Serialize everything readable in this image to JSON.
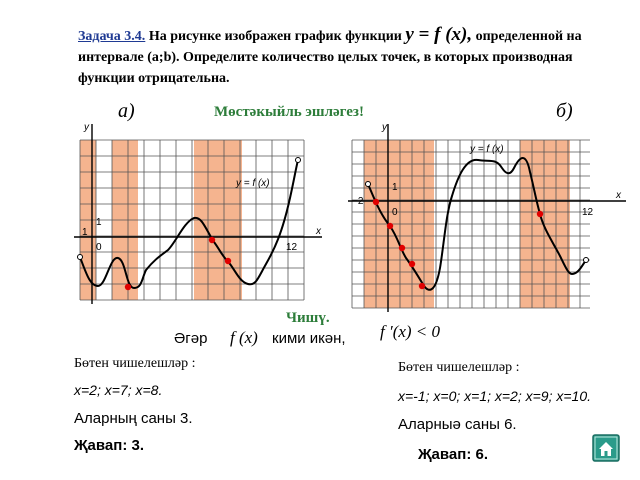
{
  "task": {
    "number": "Задача 3.4.",
    "text_before": "На рисунке изображен график функции",
    "function_expr": "y = f (x),",
    "text_after": "определенной на интервале (a;b). Определите количество целых точек, в которых производная функции отрицательна."
  },
  "subtitle": "Мөстәкыйль эшләгез!",
  "left_graph": {
    "label": "а)",
    "y_axis_label": "y",
    "x_axis_label": "x",
    "func_label": "y = f (x)",
    "tick_one_y": "1",
    "tick_one_x": "1",
    "tick_zero": "0",
    "tick_twelve": "12"
  },
  "right_graph": {
    "label": "б)",
    "y_axis_label": "y",
    "x_axis_label": "x",
    "func_label": "y = f (x)",
    "tick_one_y": "1",
    "tick_minus_two": "−2",
    "tick_zero": "0",
    "tick_twelve": "12"
  },
  "solution": {
    "title": "Чишү.",
    "condition_prefix": "Әгәр",
    "condition_fx": "f (x)",
    "condition_suffix": "кими икән,",
    "derivative": "f ′(x) < 0"
  },
  "left_answer": {
    "heading": "Бөтен чишелешләр :",
    "points": "x=2; x=7; x=8.",
    "count": "Аларның саны 3.",
    "answer": "Җавап: 3."
  },
  "right_answer": {
    "heading": "Бөтен чишелешләр :",
    "points": "x=-1; x=0; x=1; x=2; x=9; x=10.",
    "count": "Аларныә саны 6.",
    "answer": "Җавап: 6."
  },
  "home_button": {
    "icon": "home-icon",
    "color": "#2a9b8a"
  },
  "colors": {
    "shade": "#f5b48f",
    "point": "#e00000",
    "title_blue": "#1f3a93",
    "green": "#2d7d3a"
  }
}
